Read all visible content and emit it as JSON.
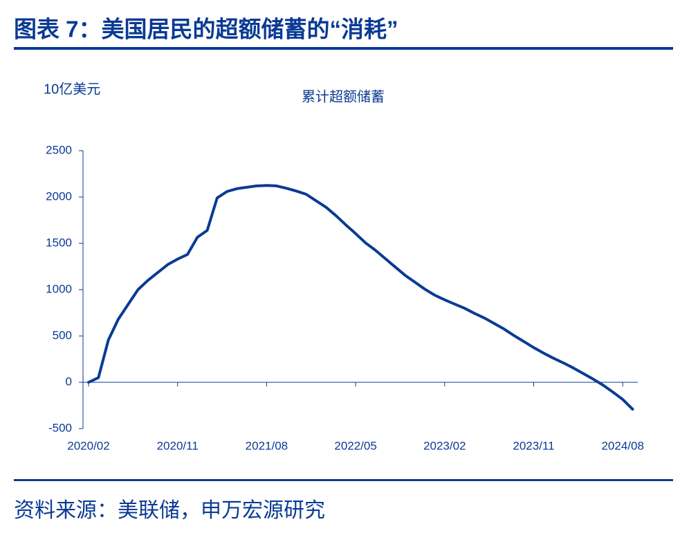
{
  "header": {
    "title": "图表 7：美国居民的超额储蓄的“消耗”"
  },
  "footer": {
    "source": "资料来源：美联储，申万宏源研究"
  },
  "chart_data": {
    "type": "line",
    "title": "累计超额储蓄",
    "y_label": "10亿美元",
    "color": "#0a3a94",
    "x": [
      "2020/02",
      "2020/03",
      "2020/04",
      "2020/05",
      "2020/06",
      "2020/07",
      "2020/08",
      "2020/09",
      "2020/10",
      "2020/11",
      "2020/12",
      "2021/01",
      "2021/02",
      "2021/03",
      "2021/04",
      "2021/05",
      "2021/06",
      "2021/07",
      "2021/08",
      "2021/09",
      "2021/10",
      "2021/11",
      "2021/12",
      "2022/01",
      "2022/02",
      "2022/03",
      "2022/04",
      "2022/05",
      "2022/06",
      "2022/07",
      "2022/08",
      "2022/09",
      "2022/10",
      "2022/11",
      "2022/12",
      "2023/01",
      "2023/02",
      "2023/03",
      "2023/04",
      "2023/05",
      "2023/06",
      "2023/07",
      "2023/08",
      "2023/09",
      "2023/10",
      "2023/11",
      "2023/12",
      "2024/01",
      "2024/02",
      "2024/03",
      "2024/04",
      "2024/05",
      "2024/06",
      "2024/07",
      "2024/08",
      "2024/09"
    ],
    "values": [
      0,
      50,
      455,
      680,
      840,
      1000,
      1100,
      1185,
      1270,
      1330,
      1380,
      1565,
      1640,
      1990,
      2060,
      2090,
      2105,
      2120,
      2125,
      2120,
      2095,
      2065,
      2030,
      1960,
      1890,
      1800,
      1700,
      1605,
      1505,
      1425,
      1335,
      1245,
      1155,
      1080,
      1005,
      940,
      890,
      845,
      800,
      745,
      695,
      635,
      575,
      505,
      440,
      375,
      315,
      260,
      210,
      155,
      95,
      35,
      -30,
      -105,
      -185,
      -290
    ],
    "xticks": [
      "2020/02",
      "2020/11",
      "2021/08",
      "2022/05",
      "2023/02",
      "2023/11",
      "2024/08"
    ],
    "ylim": [
      -500,
      2500
    ],
    "yticks": [
      -500,
      0,
      500,
      1000,
      1500,
      2000,
      2500
    ]
  }
}
